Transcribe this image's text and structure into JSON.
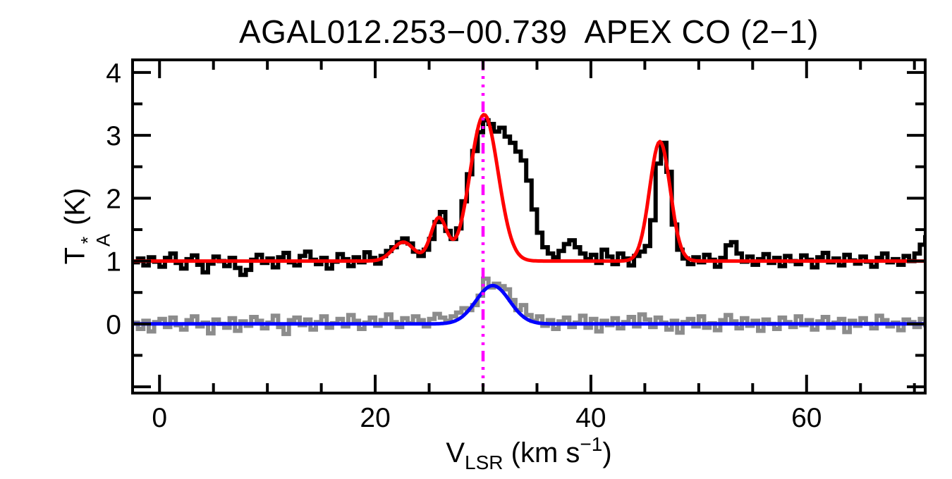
{
  "figure": {
    "background": "#ffffff",
    "axis_color": "#000000"
  },
  "chart_data": {
    "type": "line",
    "title": "AGAL012.253−00.739  APEX CO (2−1)",
    "xlabel": "V_LSR (km s^−1)",
    "xlabel_parts": {
      "prefix": "V",
      "sub": "LSR",
      "mid": "(km s",
      "sup": "−1",
      "suffix": ")"
    },
    "ylabel": "T_A^* (K)",
    "ylabel_parts": {
      "prefix": "T",
      "sup": "*",
      "sub": "A",
      "suffix": "(K)"
    },
    "xlim": [
      -2.5,
      71
    ],
    "ylim": [
      -1.1,
      4.2
    ],
    "x_major_ticks": [
      0,
      20,
      40,
      60
    ],
    "x_tick_labels": [
      "0",
      "20",
      "40",
      "60"
    ],
    "x_minor_step": 5,
    "y_major_ticks": [
      -1,
      0,
      1,
      2,
      3,
      4
    ],
    "y_tick_labels": [
      "",
      "0",
      "1",
      "2",
      "3",
      "4"
    ],
    "y_minor_step": 0.5,
    "grid": false,
    "legend": null,
    "v_start": -2.5,
    "channel_width_kms": 0.5,
    "vline": {
      "v": 30.0,
      "color": "#ff00ff",
      "pattern": "dash-dot-dot-dot"
    },
    "series": [
      {
        "name": "upper-spectrum-histogram",
        "style": "histogram",
        "color": "#000000",
        "baseline_level": 1.0,
        "values": [
          0.98,
          1.04,
          0.93,
          1.06,
          0.99,
          0.91,
          1.05,
          1.12,
          0.97,
          0.88,
          1.03,
          1.09,
          0.94,
          0.82,
          0.96,
          1.07,
          1.0,
          0.92,
          1.05,
          0.89,
          0.78,
          0.86,
          1.02,
          1.1,
          0.97,
          1.04,
          0.9,
          1.06,
          1.13,
          0.98,
          0.93,
          1.08,
          1.15,
          1.02,
          0.95,
          1.05,
          0.88,
          0.99,
          1.11,
          1.03,
          0.92,
          1.06,
          0.98,
          1.14,
          1.05,
          0.96,
          1.08,
          1.16,
          1.22,
          1.3,
          1.36,
          1.28,
          1.15,
          1.08,
          1.18,
          1.35,
          1.62,
          1.78,
          1.48,
          1.35,
          1.52,
          1.95,
          2.38,
          2.75,
          3.05,
          3.24,
          3.18,
          3.06,
          3.12,
          2.98,
          2.88,
          2.74,
          2.6,
          2.28,
          1.82,
          1.45,
          1.22,
          1.12,
          1.06,
          1.16,
          1.27,
          1.33,
          1.22,
          1.12,
          1.03,
          1.1,
          0.97,
          1.18,
          1.07,
          0.95,
          1.12,
          1.04,
          0.93,
          1.08,
          1.15,
          1.24,
          1.65,
          2.55,
          2.88,
          2.42,
          1.58,
          1.18,
          1.04,
          0.95,
          1.06,
          0.98,
          1.1,
          1.02,
          0.91,
          1.05,
          1.25,
          1.3,
          1.12,
          0.99,
          1.07,
          0.94,
          1.03,
          1.11,
          0.97,
          1.05,
          0.92,
          1.08,
          1.0,
          0.95,
          1.09,
          1.02,
          0.9,
          1.06,
          1.13,
          0.98,
          1.04,
          0.93,
          1.1,
          1.01,
          0.96,
          1.07,
          0.99,
          0.91,
          1.05,
          1.12,
          0.98,
          1.03,
          0.94,
          1.08,
          1.0,
          1.12,
          1.26,
          1.38
        ]
      },
      {
        "name": "lower-spectrum-histogram",
        "style": "histogram",
        "color": "#8c8c8c",
        "baseline_level": 0.0,
        "values": [
          0.02,
          -0.08,
          0.05,
          -0.12,
          0.03,
          0.08,
          -0.05,
          0.1,
          -0.02,
          -0.09,
          0.06,
          0.12,
          -0.04,
          0.02,
          -0.15,
          0.07,
          0.0,
          -0.06,
          0.09,
          -0.11,
          0.04,
          -0.03,
          0.11,
          0.05,
          -0.07,
          0.02,
          0.13,
          -0.05,
          -0.16,
          0.06,
          0.1,
          -0.02,
          0.07,
          -0.09,
          0.03,
          0.12,
          -0.06,
          0.01,
          0.08,
          -0.04,
          0.14,
          0.05,
          -0.08,
          0.02,
          0.1,
          -0.03,
          0.06,
          0.15,
          0.03,
          -0.05,
          0.09,
          0.01,
          0.12,
          0.06,
          -0.04,
          0.08,
          0.16,
          0.1,
          0.05,
          0.12,
          0.18,
          0.25,
          0.22,
          0.3,
          0.45,
          0.72,
          0.58,
          0.64,
          0.6,
          0.55,
          0.38,
          0.22,
          0.3,
          0.14,
          0.05,
          0.12,
          -0.03,
          0.06,
          -0.08,
          0.04,
          0.1,
          -0.05,
          0.02,
          0.13,
          -0.06,
          0.08,
          -0.12,
          0.05,
          -0.02,
          0.09,
          -0.07,
          0.03,
          0.11,
          -0.04,
          0.15,
          0.07,
          -0.05,
          0.1,
          0.02,
          -0.09,
          0.05,
          -0.14,
          0.03,
          0.08,
          -0.04,
          0.12,
          -0.06,
          0.01,
          -0.1,
          0.06,
          0.14,
          0.04,
          -0.07,
          0.09,
          -0.03,
          0.05,
          -0.11,
          0.07,
          0.0,
          -0.08,
          0.1,
          0.03,
          -0.05,
          0.12,
          -0.02,
          0.06,
          -0.09,
          0.04,
          0.11,
          -0.06,
          0.02,
          0.08,
          -0.13,
          0.05,
          -0.03,
          0.09,
          0.0,
          -0.07,
          0.13,
          0.06,
          -0.04,
          0.02,
          -0.1,
          0.07,
          0.03,
          -0.05,
          0.08,
          -0.02
        ]
      },
      {
        "name": "upper-gaussian-fit-curve",
        "style": "gaussian-curve",
        "color": "#ff0000",
        "baseline_level": 1.0,
        "components": [
          {
            "center": 22.6,
            "amp": 0.3,
            "sigma": 1.0
          },
          {
            "center": 25.9,
            "amp": 0.68,
            "sigma": 0.75
          },
          {
            "center": 30.1,
            "amp": 2.33,
            "sigma": 1.3
          },
          {
            "center": 46.4,
            "amp": 1.9,
            "sigma": 0.95
          }
        ]
      },
      {
        "name": "lower-gaussian-fit-curve",
        "style": "gaussian-curve",
        "color": "#0000ff",
        "baseline_level": 0.0,
        "components": [
          {
            "center": 30.9,
            "amp": 0.61,
            "sigma": 1.55
          }
        ]
      }
    ]
  }
}
